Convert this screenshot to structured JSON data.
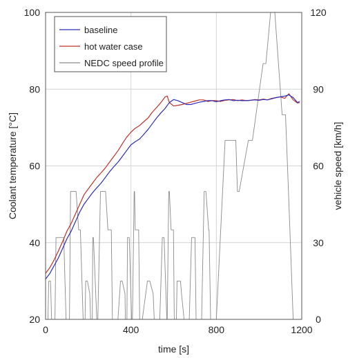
{
  "chart_data": {
    "type": "line",
    "xlabel": "time [s]",
    "ylabel_left": "Coolant temperature [°C]",
    "ylabel_right": "vehicle speed [km/h]",
    "xlim": [
      0,
      1200
    ],
    "ylim_left": [
      20,
      100
    ],
    "ylim_right": [
      0,
      120
    ],
    "x_ticks": [
      0,
      400,
      800,
      1200
    ],
    "y_ticks_left": [
      20,
      40,
      60,
      80,
      100
    ],
    "y_ticks_right": [
      0,
      30,
      60,
      90,
      120
    ],
    "grid": true,
    "legend_position": "top-left",
    "series": [
      {
        "name": "baseline",
        "axis": "left",
        "color": "#2b2bb8",
        "x": [
          0,
          20,
          40,
          60,
          80,
          100,
          120,
          140,
          160,
          180,
          200,
          220,
          240,
          260,
          280,
          300,
          320,
          340,
          360,
          380,
          400,
          420,
          440,
          460,
          480,
          500,
          520,
          540,
          560,
          580,
          600,
          620,
          640,
          660,
          680,
          700,
          720,
          740,
          760,
          780,
          800,
          820,
          840,
          860,
          880,
          900,
          920,
          940,
          960,
          980,
          1000,
          1020,
          1040,
          1060,
          1080,
          1100,
          1120,
          1140,
          1160,
          1180,
          1190
        ],
        "y": [
          30.5,
          32,
          34,
          36,
          38.5,
          41,
          43,
          45.5,
          48,
          50,
          51.5,
          53,
          54.3,
          55.5,
          57,
          58.5,
          59.8,
          61,
          62.5,
          64,
          65.5,
          66.3,
          67,
          68.2,
          69.5,
          71,
          72.5,
          73.8,
          75,
          76.5,
          77.3,
          77,
          76.5,
          76,
          76,
          76.3,
          76.6,
          76.8,
          77,
          77,
          76.7,
          77,
          77.2,
          77.3,
          77,
          77.1,
          77,
          77,
          77.1,
          77.2,
          77.1,
          77.3,
          77.2,
          77.5,
          77.8,
          78,
          78.2,
          78.5,
          77.8,
          76.5,
          76.8
        ]
      },
      {
        "name": "hot water case",
        "axis": "left",
        "color": "#c0302a",
        "x": [
          0,
          20,
          40,
          60,
          80,
          100,
          120,
          140,
          160,
          180,
          200,
          220,
          240,
          260,
          280,
          300,
          320,
          340,
          360,
          380,
          400,
          420,
          440,
          460,
          480,
          500,
          520,
          540,
          560,
          570,
          580,
          600,
          620,
          640,
          660,
          680,
          700,
          720,
          740,
          760,
          780,
          800,
          820,
          840,
          860,
          880,
          900,
          920,
          940,
          960,
          980,
          1000,
          1020,
          1040,
          1060,
          1080,
          1100,
          1120,
          1140,
          1160,
          1180,
          1190
        ],
        "y": [
          32,
          33.5,
          35.5,
          37.8,
          40.3,
          43,
          45,
          47.5,
          50,
          52.5,
          54,
          55.5,
          57,
          58.2,
          59.5,
          61,
          62.5,
          64,
          65.8,
          67.5,
          68.8,
          69.8,
          70.5,
          71.5,
          72.5,
          74,
          75.2,
          76.5,
          78,
          78.2,
          76.5,
          75.6,
          75.8,
          76,
          76.3,
          76.6,
          76.9,
          77.2,
          77.2,
          76.8,
          77,
          77,
          76.8,
          77.1,
          77.2,
          77.3,
          77,
          77.2,
          77,
          77.1,
          77.3,
          77.2,
          77.4,
          77.2,
          77.6,
          77.8,
          78,
          77.6,
          78.8,
          77.2,
          76.4,
          76.5
        ]
      },
      {
        "name": "NEDC speed profile",
        "axis": "right",
        "color": "#8a8a8a",
        "x": [
          0,
          11,
          15,
          23,
          25,
          28,
          44,
          49,
          61,
          85,
          96,
          112,
          117,
          143,
          155,
          163,
          176,
          178,
          185,
          188,
          196,
          207,
          211,
          219,
          221,
          224,
          240,
          245,
          257,
          281,
          292,
          308,
          313,
          339,
          351,
          359,
          372,
          374,
          381,
          384,
          392,
          403,
          407,
          415,
          417,
          420,
          436,
          441,
          453,
          477,
          488,
          504,
          509,
          535,
          547,
          555,
          568,
          570,
          577,
          580,
          588,
          599,
          603,
          611,
          613,
          616,
          632,
          637,
          649,
          673,
          684,
          700,
          705,
          731,
          743,
          751,
          764,
          766,
          773,
          776,
          780,
          800,
          841,
          891,
          899,
          907,
          950,
          969,
          1019,
          1032,
          1054,
          1074,
          1108,
          1124,
          1138,
          1160,
          1175,
          1180
        ],
        "y": [
          0,
          0,
          15,
          15,
          10,
          0,
          0,
          32,
          32,
          32,
          0,
          0,
          50,
          50,
          35,
          35,
          0,
          0,
          0,
          15,
          15,
          10,
          0,
          0,
          32,
          32,
          0,
          0,
          50,
          50,
          35,
          35,
          0,
          0,
          15,
          15,
          10,
          0,
          0,
          32,
          32,
          0,
          0,
          50,
          50,
          35,
          35,
          0,
          0,
          15,
          15,
          10,
          0,
          0,
          32,
          32,
          0,
          0,
          50,
          50,
          35,
          35,
          0,
          0,
          0,
          15,
          15,
          10,
          0,
          0,
          32,
          32,
          0,
          0,
          50,
          50,
          35,
          35,
          0,
          0,
          0,
          0,
          70,
          70,
          50,
          50,
          70,
          70,
          100,
          100,
          120,
          120,
          80,
          80,
          50,
          0,
          0,
          0
        ]
      }
    ]
  },
  "colors": {
    "grid": "#d4d4d4",
    "axis": "#555555"
  }
}
